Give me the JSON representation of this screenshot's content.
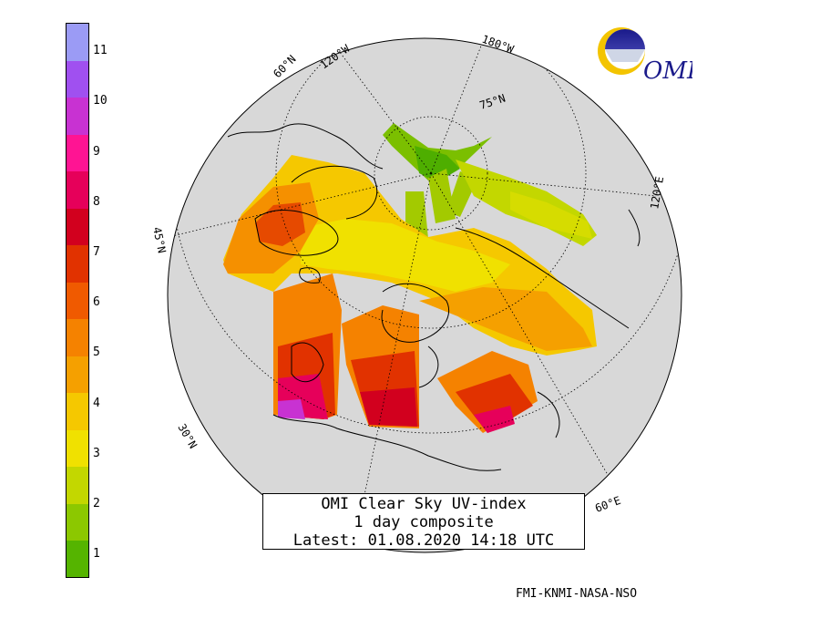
{
  "colorbar": {
    "ticks": [
      "1",
      "2",
      "3",
      "4",
      "5",
      "6",
      "7",
      "8",
      "9",
      "10",
      "11"
    ],
    "colors": [
      "#55b400",
      "#8cc800",
      "#c3d700",
      "#f0e100",
      "#f5c800",
      "#f5a000",
      "#f58200",
      "#f05a00",
      "#e13200",
      "#d2001e",
      "#e6005a",
      "#ff1493",
      "#c832d2",
      "#a050f0",
      "#9b9bf5"
    ],
    "range": [
      0,
      11.5
    ]
  },
  "map": {
    "lat_labels": [
      "75°N",
      "60°N",
      "45°N",
      "30°N"
    ],
    "lon_labels": [
      "180°W",
      "120°W",
      "120°E",
      "60°E"
    ]
  },
  "title_box": {
    "line1": "OMI Clear Sky UV-index",
    "line2": "1 day composite",
    "line3": "Latest: 01.08.2020 14:18 UTC"
  },
  "logo": {
    "text": "OMI"
  },
  "credits": "FMI-KNMI-NASA-NSO"
}
